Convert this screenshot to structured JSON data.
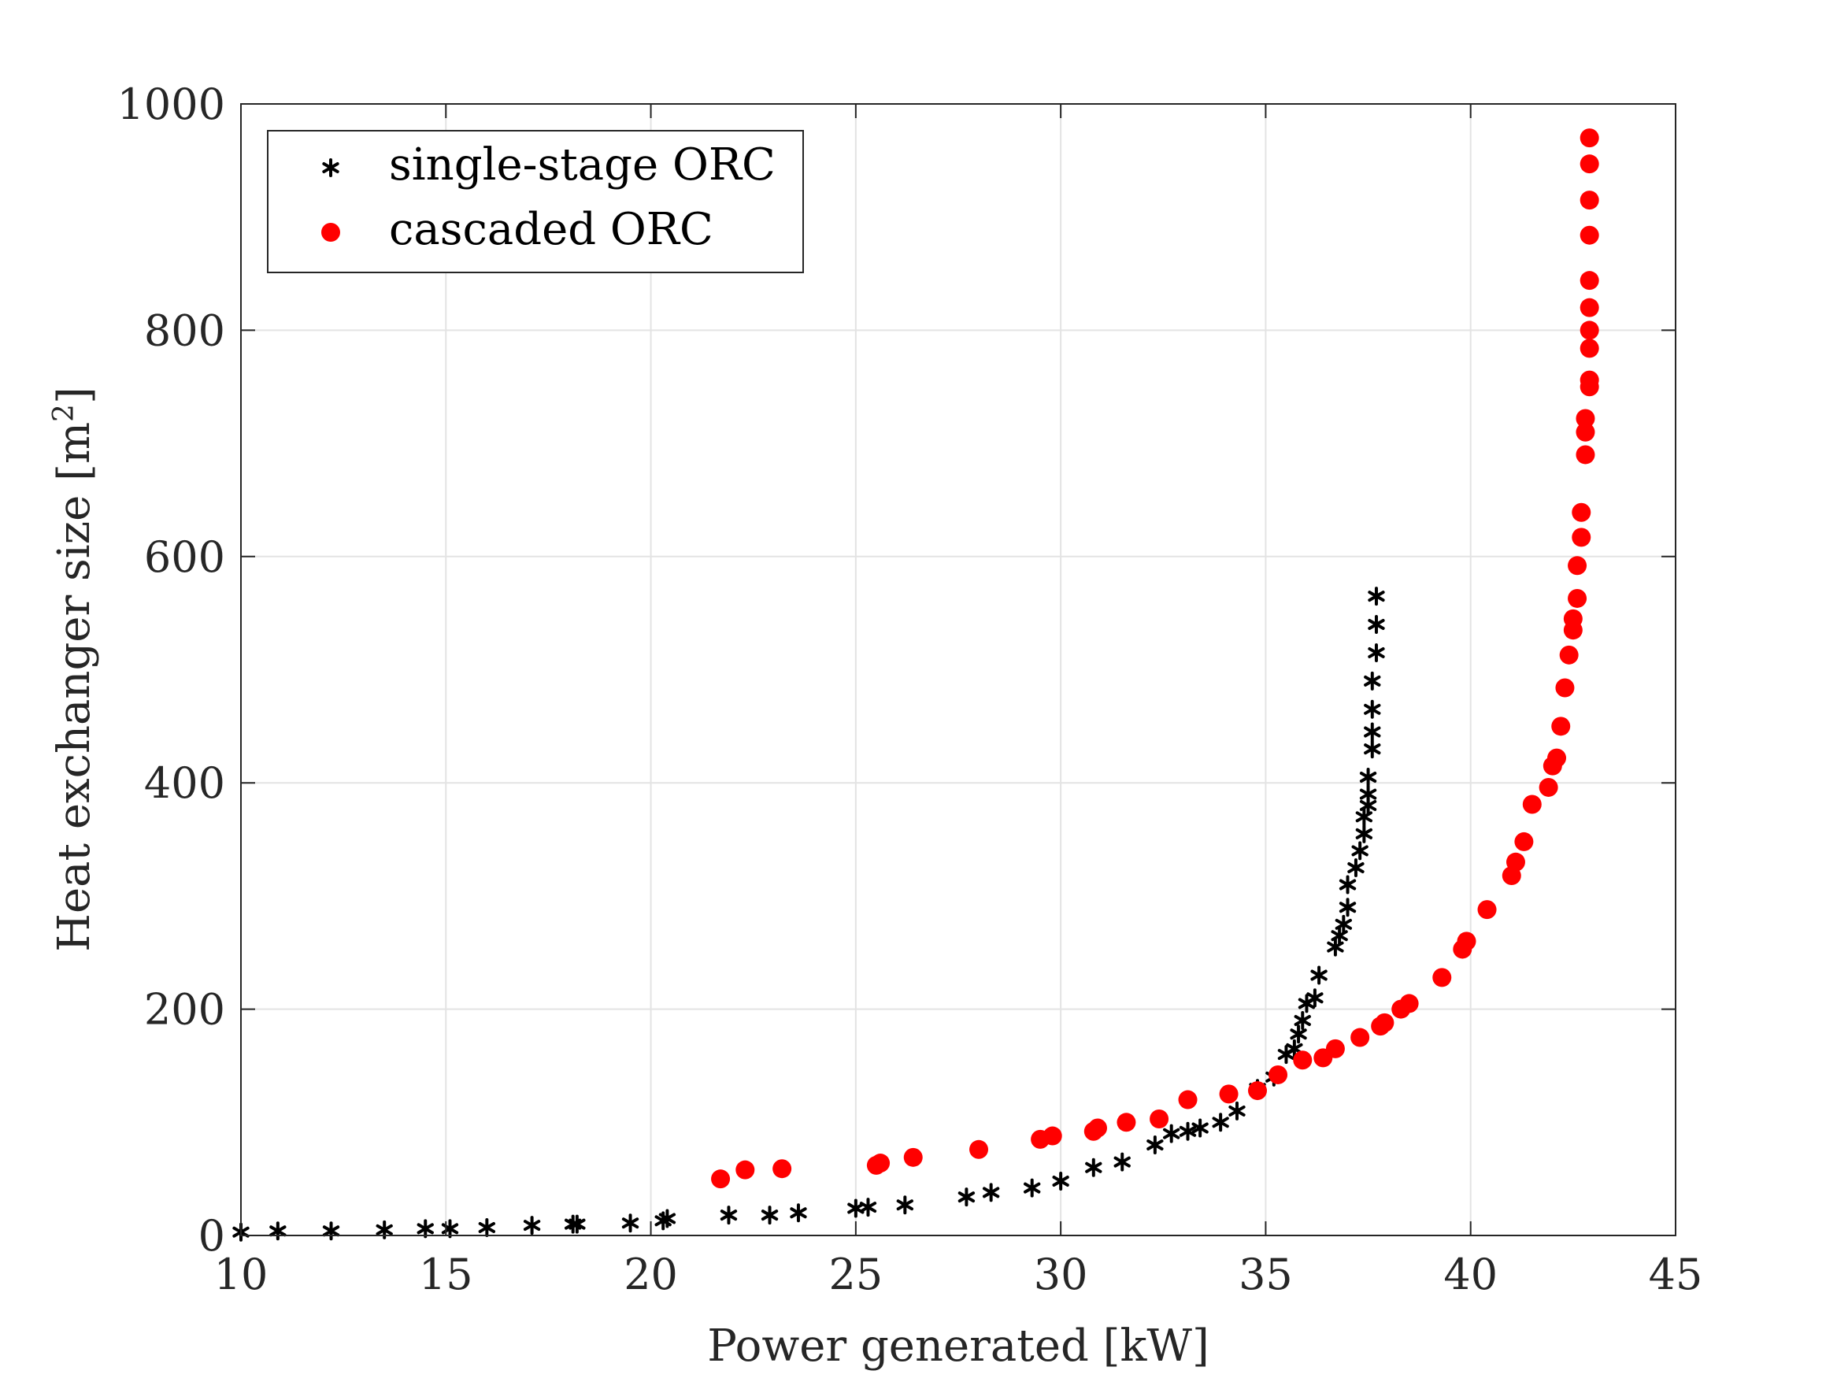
{
  "chart_data": {
    "type": "scatter",
    "xlabel": "Power generated [kW]",
    "ylabel": "Heat exchanger size [m",
    "ylabel_superscript": "2",
    "ylabel_suffix": "]",
    "xlim": [
      10,
      45
    ],
    "ylim": [
      0,
      1000
    ],
    "xticks": [
      10,
      15,
      20,
      25,
      30,
      35,
      40,
      45
    ],
    "yticks": [
      0,
      200,
      400,
      600,
      800,
      1000
    ],
    "grid": true,
    "legend_position": "top-left",
    "series": [
      {
        "name": "single-stage ORC",
        "marker": "asterisk",
        "color": "#000000",
        "points": [
          [
            10.0,
            3
          ],
          [
            10.9,
            4
          ],
          [
            12.2,
            4
          ],
          [
            13.5,
            5
          ],
          [
            14.5,
            6
          ],
          [
            15.1,
            6
          ],
          [
            16.0,
            7
          ],
          [
            17.1,
            9
          ],
          [
            18.1,
            10
          ],
          [
            18.2,
            10
          ],
          [
            19.5,
            11
          ],
          [
            20.3,
            13
          ],
          [
            20.4,
            15
          ],
          [
            21.9,
            18
          ],
          [
            22.9,
            18
          ],
          [
            23.6,
            20
          ],
          [
            25.0,
            24
          ],
          [
            25.3,
            25
          ],
          [
            26.2,
            27
          ],
          [
            27.7,
            34
          ],
          [
            28.3,
            38
          ],
          [
            29.3,
            42
          ],
          [
            30.0,
            48
          ],
          [
            30.8,
            60
          ],
          [
            31.5,
            65
          ],
          [
            32.3,
            80
          ],
          [
            32.7,
            90
          ],
          [
            33.1,
            92
          ],
          [
            33.4,
            95
          ],
          [
            33.9,
            100
          ],
          [
            34.3,
            110
          ],
          [
            34.8,
            130
          ],
          [
            35.2,
            140
          ],
          [
            35.5,
            160
          ],
          [
            35.7,
            165
          ],
          [
            35.8,
            178
          ],
          [
            35.9,
            190
          ],
          [
            36.0,
            205
          ],
          [
            36.2,
            210
          ],
          [
            36.3,
            230
          ],
          [
            36.7,
            255
          ],
          [
            36.8,
            265
          ],
          [
            36.9,
            275
          ],
          [
            37.0,
            290
          ],
          [
            37.0,
            310
          ],
          [
            37.2,
            325
          ],
          [
            37.3,
            340
          ],
          [
            37.4,
            355
          ],
          [
            37.4,
            370
          ],
          [
            37.5,
            380
          ],
          [
            37.5,
            390
          ],
          [
            37.5,
            405
          ],
          [
            37.6,
            430
          ],
          [
            37.6,
            445
          ],
          [
            37.6,
            465
          ],
          [
            37.6,
            490
          ],
          [
            37.7,
            515
          ],
          [
            37.7,
            540
          ],
          [
            37.7,
            565
          ]
        ]
      },
      {
        "name": "cascaded ORC",
        "marker": "circle",
        "color": "#ff0000",
        "points": [
          [
            21.7,
            50
          ],
          [
            22.3,
            58
          ],
          [
            23.2,
            59
          ],
          [
            25.5,
            62
          ],
          [
            25.6,
            64
          ],
          [
            26.4,
            69
          ],
          [
            28.0,
            76
          ],
          [
            29.5,
            85
          ],
          [
            29.8,
            88
          ],
          [
            30.8,
            92
          ],
          [
            30.9,
            95
          ],
          [
            31.6,
            100
          ],
          [
            32.4,
            103
          ],
          [
            33.1,
            120
          ],
          [
            34.1,
            125
          ],
          [
            34.8,
            128
          ],
          [
            35.3,
            142
          ],
          [
            35.9,
            155
          ],
          [
            36.4,
            157
          ],
          [
            36.7,
            165
          ],
          [
            37.3,
            175
          ],
          [
            37.8,
            185
          ],
          [
            37.9,
            188
          ],
          [
            38.3,
            200
          ],
          [
            38.5,
            205
          ],
          [
            39.3,
            228
          ],
          [
            39.8,
            253
          ],
          [
            39.9,
            260
          ],
          [
            40.4,
            288
          ],
          [
            41.0,
            318
          ],
          [
            41.1,
            330
          ],
          [
            41.3,
            348
          ],
          [
            41.5,
            381
          ],
          [
            41.9,
            396
          ],
          [
            42.0,
            415
          ],
          [
            42.1,
            422
          ],
          [
            42.2,
            450
          ],
          [
            42.3,
            484
          ],
          [
            42.4,
            513
          ],
          [
            42.5,
            535
          ],
          [
            42.5,
            545
          ],
          [
            42.6,
            563
          ],
          [
            42.6,
            592
          ],
          [
            42.7,
            617
          ],
          [
            42.7,
            639
          ],
          [
            42.8,
            690
          ],
          [
            42.8,
            710
          ],
          [
            42.8,
            722
          ],
          [
            42.9,
            750
          ],
          [
            42.9,
            756
          ],
          [
            42.9,
            784
          ],
          [
            42.9,
            800
          ],
          [
            42.9,
            820
          ],
          [
            42.9,
            844
          ],
          [
            42.9,
            884
          ],
          [
            42.9,
            915
          ],
          [
            42.9,
            947
          ],
          [
            42.9,
            970
          ]
        ]
      }
    ]
  }
}
